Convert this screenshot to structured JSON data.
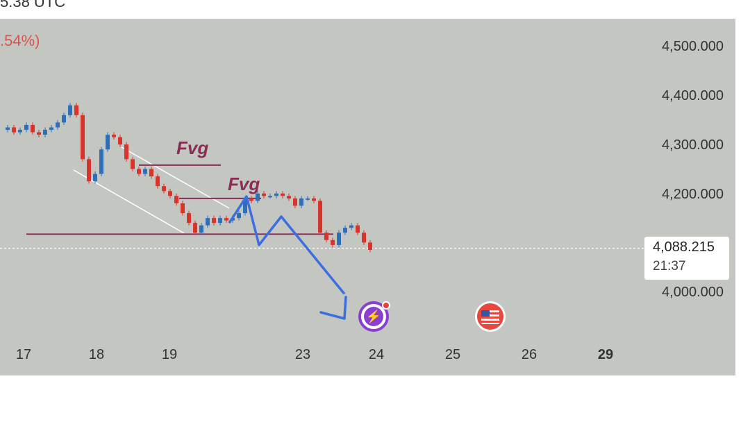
{
  "header": {
    "time_fragment": "5.38 UTC",
    "change_fragment": ".54%)"
  },
  "colors": {
    "panel_bg": "#c3c6c1",
    "up_candle": "#2f6fb8",
    "down_candle": "#d9342b",
    "drawing_line": "#8a2d55",
    "channel": "#ffffff",
    "arrow": "#3b6fe0"
  },
  "chart_data": {
    "type": "candlestick",
    "y_axis": {
      "ticks": [
        "4,500.000",
        "4,400.000",
        "4,300.000",
        "4,200.000",
        "4,000.000"
      ],
      "tick_values": [
        4500,
        4400,
        4300,
        4200,
        4000
      ],
      "range": [
        3900,
        4570
      ]
    },
    "x_axis": {
      "ticks": [
        "17",
        "18",
        "19",
        "23",
        "24",
        "25",
        "26",
        "29"
      ],
      "bold_tick": "29"
    },
    "current_price": "4,088.215",
    "countdown": "21:37",
    "price_path": [
      4330,
      4335,
      4325,
      4330,
      4340,
      4325,
      4320,
      4330,
      4335,
      4345,
      4360,
      4380,
      4360,
      4270,
      4225,
      4240,
      4290,
      4320,
      4315,
      4300,
      4270,
      4250,
      4240,
      4250,
      4235,
      4215,
      4205,
      4195,
      4180,
      4160,
      4140,
      4120,
      4135,
      4150,
      4140,
      4150,
      4145,
      4150,
      4160,
      4190,
      4185,
      4200,
      4195,
      4195,
      4200,
      4195,
      4190,
      4175,
      4190,
      4190,
      4185,
      4120,
      4105,
      4095,
      4120,
      4130,
      4135,
      4120,
      4100,
      4085
    ],
    "annotations": {
      "labels": [
        "Fvg",
        "Fvg"
      ],
      "fvg_levels": [
        4258,
        4190
      ],
      "support_level": 4117,
      "projection": [
        4140,
        4095,
        4170,
        3995
      ]
    },
    "events": [
      "lightning-event",
      "us-flag-event"
    ]
  }
}
